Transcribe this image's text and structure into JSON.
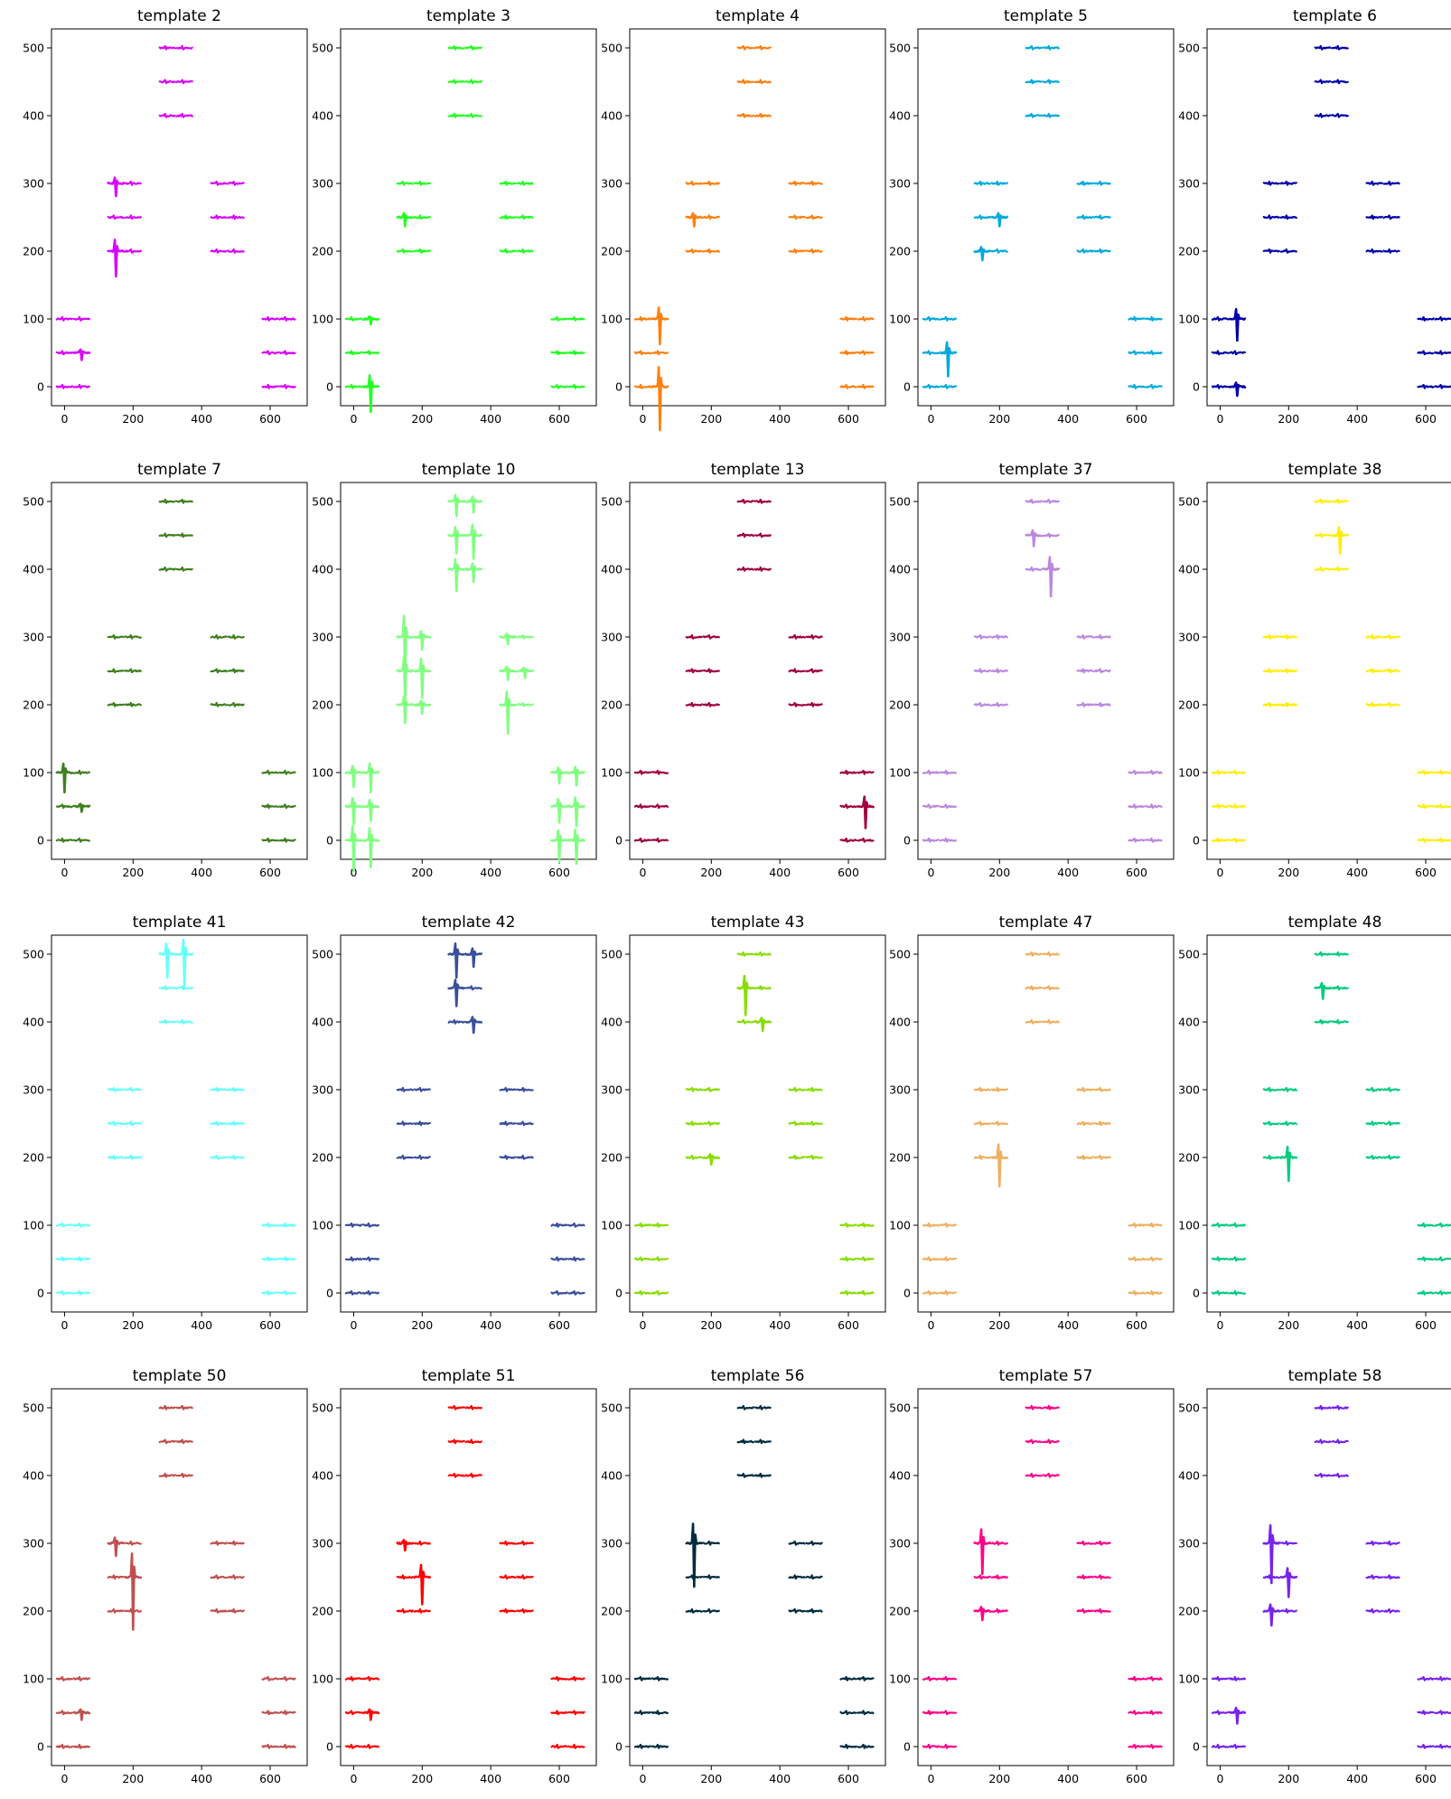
{
  "figure": {
    "x_ticks": [
      0,
      200,
      400,
      600
    ],
    "y_ticks": [
      0,
      100,
      200,
      300,
      400,
      500
    ],
    "xlim": [
      -38,
      708
    ],
    "ylim": [
      -28,
      528
    ]
  },
  "chart_data": [
    {
      "type": "scatter",
      "title": "template 2",
      "color": "#d900ff",
      "spikes": [
        {
          "x": 150,
          "y": 300,
          "amp": 14
        },
        {
          "x": 150,
          "y": 200,
          "amp": 28
        },
        {
          "x": 50,
          "y": 50,
          "amp": 8
        }
      ]
    },
    {
      "type": "scatter",
      "title": "template 3",
      "color": "#22ff22",
      "spikes": [
        {
          "x": 150,
          "y": 250,
          "amp": 10
        },
        {
          "x": 50,
          "y": 0,
          "amp": 28
        },
        {
          "x": 50,
          "y": 100,
          "amp": 6
        }
      ]
    },
    {
      "type": "scatter",
      "title": "template 4",
      "color": "#ff7f0e",
      "spikes": [
        {
          "x": 50,
          "y": 100,
          "amp": 28
        },
        {
          "x": 50,
          "y": 0,
          "amp": 48
        },
        {
          "x": 150,
          "y": 250,
          "amp": 10
        }
      ]
    },
    {
      "type": "scatter",
      "title": "template 5",
      "color": "#00aadd",
      "spikes": [
        {
          "x": 50,
          "y": 50,
          "amp": 26
        },
        {
          "x": 150,
          "y": 200,
          "amp": 10
        },
        {
          "x": 200,
          "y": 250,
          "amp": 10
        }
      ]
    },
    {
      "type": "scatter",
      "title": "template 6",
      "color": "#0000aa",
      "spikes": [
        {
          "x": 50,
          "y": 100,
          "amp": 24
        },
        {
          "x": 50,
          "y": 0,
          "amp": 10
        }
      ]
    },
    {
      "type": "scatter",
      "title": "template 7",
      "color": "#3f7f1f",
      "spikes": [
        {
          "x": 0,
          "y": 100,
          "amp": 22
        },
        {
          "x": 50,
          "y": 50,
          "amp": 6
        }
      ]
    },
    {
      "type": "scatter",
      "title": "template 10",
      "color": "#80ff80",
      "spikes": [
        {
          "x": 0,
          "y": 100,
          "amp": 16
        },
        {
          "x": 50,
          "y": 100,
          "amp": 22
        },
        {
          "x": 0,
          "y": 50,
          "amp": 20
        },
        {
          "x": 50,
          "y": 50,
          "amp": 16
        },
        {
          "x": 0,
          "y": 0,
          "amp": 34
        },
        {
          "x": 50,
          "y": 0,
          "amp": 30
        },
        {
          "x": 150,
          "y": 300,
          "amp": 52
        },
        {
          "x": 150,
          "y": 250,
          "amp": 34
        },
        {
          "x": 150,
          "y": 200,
          "amp": 20
        },
        {
          "x": 200,
          "y": 250,
          "amp": 30
        },
        {
          "x": 200,
          "y": 300,
          "amp": 14
        },
        {
          "x": 200,
          "y": 200,
          "amp": 10
        },
        {
          "x": 300,
          "y": 500,
          "amp": 16
        },
        {
          "x": 350,
          "y": 500,
          "amp": 12
        },
        {
          "x": 300,
          "y": 450,
          "amp": 20
        },
        {
          "x": 350,
          "y": 450,
          "amp": 26
        },
        {
          "x": 300,
          "y": 400,
          "amp": 24
        },
        {
          "x": 350,
          "y": 400,
          "amp": 14
        },
        {
          "x": 450,
          "y": 200,
          "amp": 32
        },
        {
          "x": 450,
          "y": 250,
          "amp": 10
        },
        {
          "x": 450,
          "y": 300,
          "amp": 8
        },
        {
          "x": 500,
          "y": 250,
          "amp": 8
        },
        {
          "x": 600,
          "y": 100,
          "amp": 12
        },
        {
          "x": 650,
          "y": 100,
          "amp": 14
        },
        {
          "x": 600,
          "y": 50,
          "amp": 18
        },
        {
          "x": 650,
          "y": 50,
          "amp": 22
        },
        {
          "x": 600,
          "y": 0,
          "amp": 24
        },
        {
          "x": 650,
          "y": 0,
          "amp": 26
        }
      ]
    },
    {
      "type": "scatter",
      "title": "template 13",
      "color": "#a00040",
      "spikes": [
        {
          "x": 650,
          "y": 50,
          "amp": 24
        }
      ]
    },
    {
      "type": "scatter",
      "title": "template 37",
      "color": "#bb88dd",
      "spikes": [
        {
          "x": 350,
          "y": 400,
          "amp": 30
        },
        {
          "x": 300,
          "y": 450,
          "amp": 12
        }
      ]
    },
    {
      "type": "scatter",
      "title": "template 38",
      "color": "#ffee00",
      "spikes": [
        {
          "x": 350,
          "y": 450,
          "amp": 20
        }
      ]
    },
    {
      "type": "scatter",
      "title": "template 41",
      "color": "#66ffff",
      "spikes": [
        {
          "x": 300,
          "y": 500,
          "amp": 26
        },
        {
          "x": 350,
          "y": 500,
          "amp": 36
        }
      ]
    },
    {
      "type": "scatter",
      "title": "template 42",
      "color": "#3a4f9a",
      "spikes": [
        {
          "x": 300,
          "y": 500,
          "amp": 26
        },
        {
          "x": 300,
          "y": 450,
          "amp": 20
        },
        {
          "x": 350,
          "y": 400,
          "amp": 12
        },
        {
          "x": 350,
          "y": 500,
          "amp": 14
        }
      ]
    },
    {
      "type": "scatter",
      "title": "template 43",
      "color": "#88dd00",
      "spikes": [
        {
          "x": 300,
          "y": 450,
          "amp": 30
        },
        {
          "x": 350,
          "y": 400,
          "amp": 10
        },
        {
          "x": 200,
          "y": 200,
          "amp": 8
        }
      ]
    },
    {
      "type": "scatter",
      "title": "template 47",
      "color": "#eeb060",
      "spikes": [
        {
          "x": 200,
          "y": 200,
          "amp": 32
        }
      ]
    },
    {
      "type": "scatter",
      "title": "template 48",
      "color": "#00cc80",
      "spikes": [
        {
          "x": 200,
          "y": 200,
          "amp": 26
        },
        {
          "x": 300,
          "y": 450,
          "amp": 12
        }
      ]
    },
    {
      "type": "scatter",
      "title": "template 50",
      "color": "#c05050",
      "spikes": [
        {
          "x": 200,
          "y": 250,
          "amp": 58
        },
        {
          "x": 150,
          "y": 300,
          "amp": 14
        },
        {
          "x": 50,
          "y": 50,
          "amp": 8
        }
      ]
    },
    {
      "type": "scatter",
      "title": "template 51",
      "color": "#ff0000",
      "spikes": [
        {
          "x": 200,
          "y": 250,
          "amp": 30
        },
        {
          "x": 150,
          "y": 300,
          "amp": 8
        },
        {
          "x": 50,
          "y": 50,
          "amp": 8
        }
      ]
    },
    {
      "type": "scatter",
      "title": "template 56",
      "color": "#002b40",
      "spikes": [
        {
          "x": 150,
          "y": 300,
          "amp": 48
        }
      ]
    },
    {
      "type": "scatter",
      "title": "template 57",
      "color": "#ff0088",
      "spikes": [
        {
          "x": 150,
          "y": 300,
          "amp": 34
        },
        {
          "x": 150,
          "y": 200,
          "amp": 10
        }
      ]
    },
    {
      "type": "scatter",
      "title": "template 58",
      "color": "#7722ee",
      "spikes": [
        {
          "x": 150,
          "y": 300,
          "amp": 44
        },
        {
          "x": 200,
          "y": 250,
          "amp": 22
        },
        {
          "x": 150,
          "y": 200,
          "amp": 16
        },
        {
          "x": 50,
          "y": 50,
          "amp": 12
        }
      ]
    }
  ]
}
